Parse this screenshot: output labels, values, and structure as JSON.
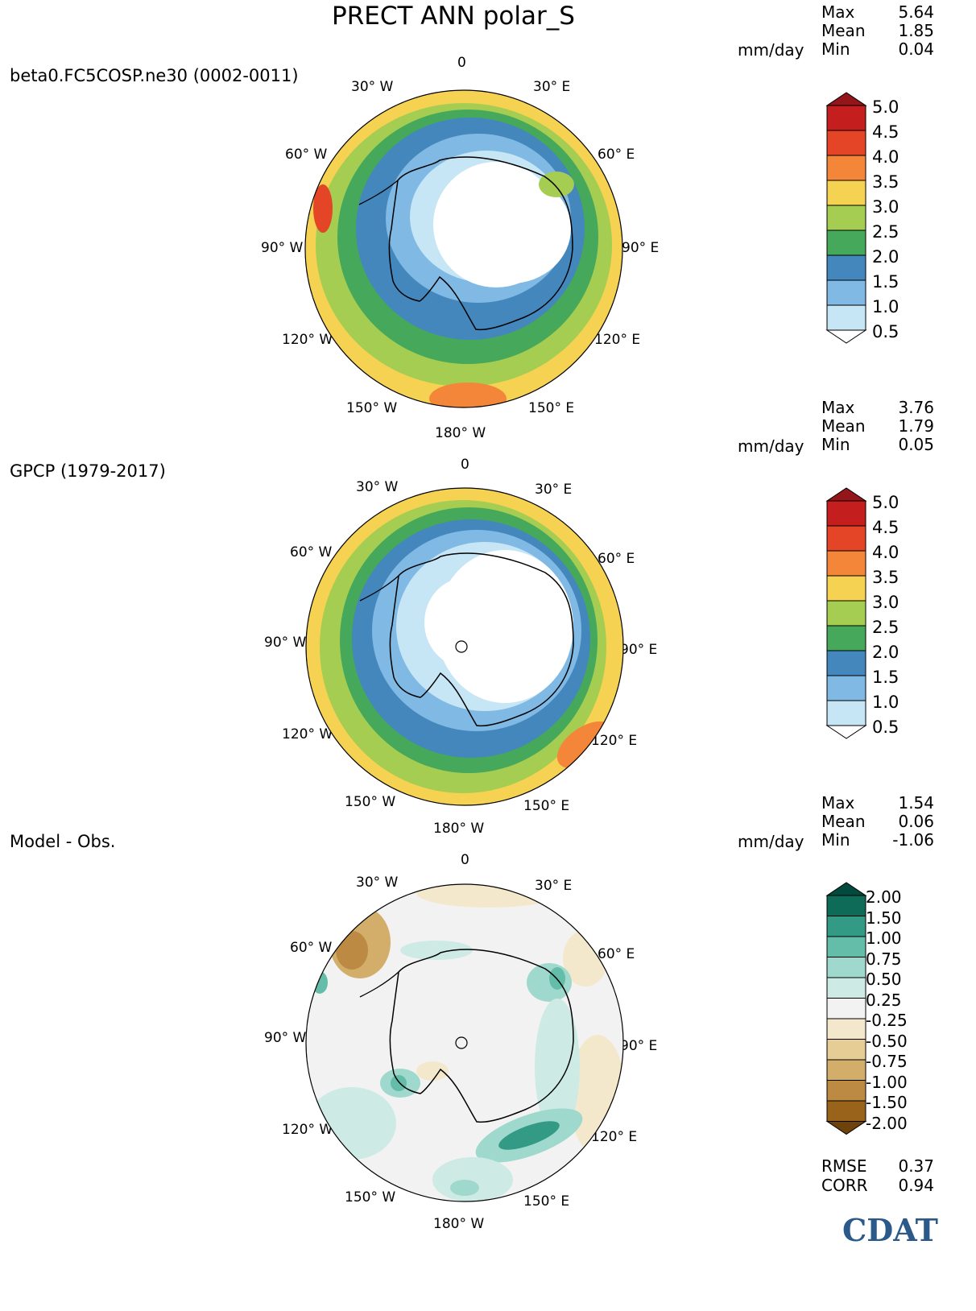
{
  "title": "PRECT ANN polar_S",
  "panels": [
    {
      "id": "model",
      "title": "beta0.FC5COSP.ne30 (0002-0011)",
      "stats": {
        "labels": [
          "Max",
          "Mean",
          "Min"
        ],
        "values": [
          "5.64",
          "1.85",
          "0.04"
        ],
        "units": "mm/day"
      },
      "lon_labels": [
        "0",
        "30° E",
        "60° E",
        "90° E",
        "120° E",
        "150° E",
        "180° W",
        "150° W",
        "120° W",
        "90° W",
        "60° W",
        "30° W"
      ],
      "colorbar": {
        "ticks": [
          "0.5",
          "1.0",
          "1.5",
          "2.0",
          "2.5",
          "3.0",
          "3.5",
          "4.0",
          "4.5",
          "5.0"
        ],
        "colors": [
          "#c6e5f5",
          "#7fb9e4",
          "#4387bd",
          "#46a85a",
          "#a5cd52",
          "#f5d252",
          "#f4863a",
          "#e44527",
          "#c41e1e",
          "#94151a"
        ],
        "under_color": "#ffffff"
      }
    },
    {
      "id": "obs",
      "title": "GPCP (1979-2017)",
      "stats": {
        "labels": [
          "Max",
          "Mean",
          "Min"
        ],
        "values": [
          "3.76",
          "1.79",
          "0.05"
        ],
        "units": "mm/day"
      },
      "lon_labels": [
        "0",
        "30° E",
        "60° E",
        "90° E",
        "120° E",
        "150° E",
        "180° W",
        "150° W",
        "120° W",
        "90° W",
        "60° W",
        "30° W"
      ],
      "colorbar": {
        "ticks": [
          "0.5",
          "1.0",
          "1.5",
          "2.0",
          "2.5",
          "3.0",
          "3.5",
          "4.0",
          "4.5",
          "5.0"
        ],
        "colors": [
          "#c6e5f5",
          "#7fb9e4",
          "#4387bd",
          "#46a85a",
          "#a5cd52",
          "#f5d252",
          "#f4863a",
          "#e44527",
          "#c41e1e",
          "#94151a"
        ],
        "under_color": "#ffffff"
      }
    },
    {
      "id": "diff",
      "title": "Model - Obs.",
      "stats": {
        "labels": [
          "Max",
          "Mean",
          "Min"
        ],
        "values": [
          "1.54",
          "0.06",
          "-1.06"
        ],
        "units": "mm/day"
      },
      "lon_labels": [
        "0",
        "30° E",
        "60° E",
        "90° E",
        "120° E",
        "150° E",
        "180° W",
        "150° W",
        "120° W",
        "90° W",
        "60° W",
        "30° W"
      ],
      "colorbar": {
        "ticks": [
          "-2.00",
          "-1.50",
          "-1.00",
          "-0.75",
          "-0.50",
          "-0.25",
          "0.25",
          "0.50",
          "0.75",
          "1.00",
          "1.50",
          "2.00"
        ],
        "colors": [
          "#6e420b",
          "#9a631c",
          "#bc8a42",
          "#d3ad6a",
          "#e5cd95",
          "#f4e8cc",
          "#f2f2f2",
          "#cdeae4",
          "#9fd8cc",
          "#64bda9",
          "#339a85",
          "#0e6b58",
          "#014a3d"
        ],
        "under_color": "#5a3406",
        "over_color": "#014a3d"
      },
      "metrics": {
        "labels": [
          "RMSE",
          "CORR"
        ],
        "values": [
          "0.37",
          "0.94"
        ]
      }
    }
  ],
  "logo": {
    "text": "CDAT",
    "color": "#2b5a8a"
  }
}
